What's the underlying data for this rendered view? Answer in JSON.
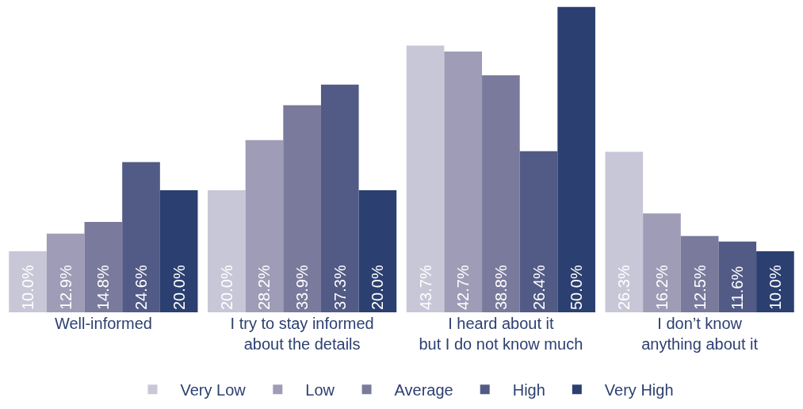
{
  "chart_data": {
    "type": "bar",
    "categories": [
      "Well-informed",
      "I try to stay informed\nabout the details",
      "I heard about it\nbut I do not know much",
      "I don’t know\nanything about it"
    ],
    "series": [
      {
        "name": "Very Low",
        "color": "#c8c7d8",
        "values": [
          10.0,
          20.0,
          43.7,
          26.3
        ],
        "value_labels": [
          "10.0%",
          "20.0%",
          "43.7%",
          "26.3%"
        ]
      },
      {
        "name": "Low",
        "color": "#9e9cb6",
        "values": [
          12.9,
          28.2,
          42.7,
          16.2
        ],
        "value_labels": [
          "12.9%",
          "28.2%",
          "42.7%",
          "16.2%"
        ]
      },
      {
        "name": "Average",
        "color": "#7a7a9d",
        "values": [
          14.8,
          33.9,
          38.8,
          12.5
        ],
        "value_labels": [
          "14.8%",
          "33.9%",
          "38.8%",
          "12.5%"
        ]
      },
      {
        "name": "High",
        "color": "#525a86",
        "values": [
          24.6,
          37.3,
          26.4,
          11.6
        ],
        "value_labels": [
          "24.6%",
          "37.3%",
          "26.4%",
          "11.6%"
        ]
      },
      {
        "name": "Very High",
        "color": "#2b3f70",
        "values": [
          20.0,
          20.0,
          50.0,
          10.0
        ],
        "value_labels": [
          "20.0%",
          "20.0%",
          "50.0%",
          "10.0%"
        ]
      }
    ],
    "legend": "bottom",
    "tick_labels": "x"
  }
}
